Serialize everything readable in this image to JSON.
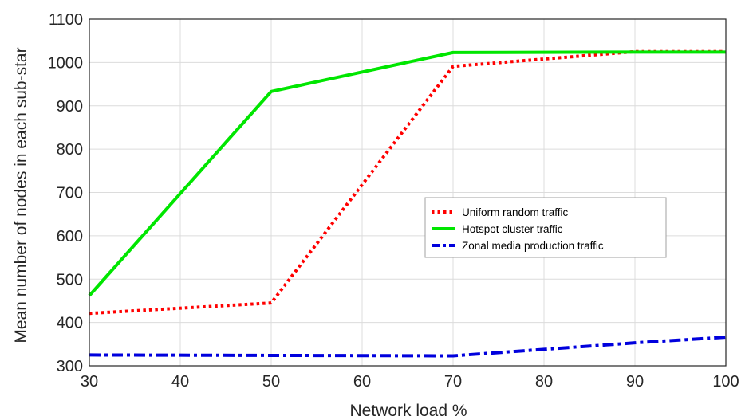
{
  "chart_data": {
    "type": "line",
    "title": "",
    "xlabel": "Network load %",
    "ylabel": "Mean number of nodes in each sub-star",
    "x": [
      30,
      50,
      70,
      90,
      100
    ],
    "xlim": [
      30,
      100
    ],
    "ylim": [
      300,
      1100
    ],
    "xticks": [
      30,
      40,
      50,
      60,
      70,
      80,
      90,
      100
    ],
    "yticks": [
      300,
      400,
      500,
      600,
      700,
      800,
      900,
      1000,
      1100
    ],
    "grid": true,
    "legend_position": "center-right",
    "series": [
      {
        "name": "Uniform random traffic",
        "values": [
          421,
          445,
          991,
          1025,
          1025
        ],
        "color": "#ff0000",
        "style": "dotted"
      },
      {
        "name": "Hotspot cluster traffic",
        "values": [
          462,
          933,
          1023,
          1024,
          1024
        ],
        "color": "#00e600",
        "style": "solid"
      },
      {
        "name": "Zonal media production traffic",
        "values": [
          325,
          324,
          323,
          353,
          366
        ],
        "color": "#0000dd",
        "style": "dash-dot"
      }
    ]
  }
}
